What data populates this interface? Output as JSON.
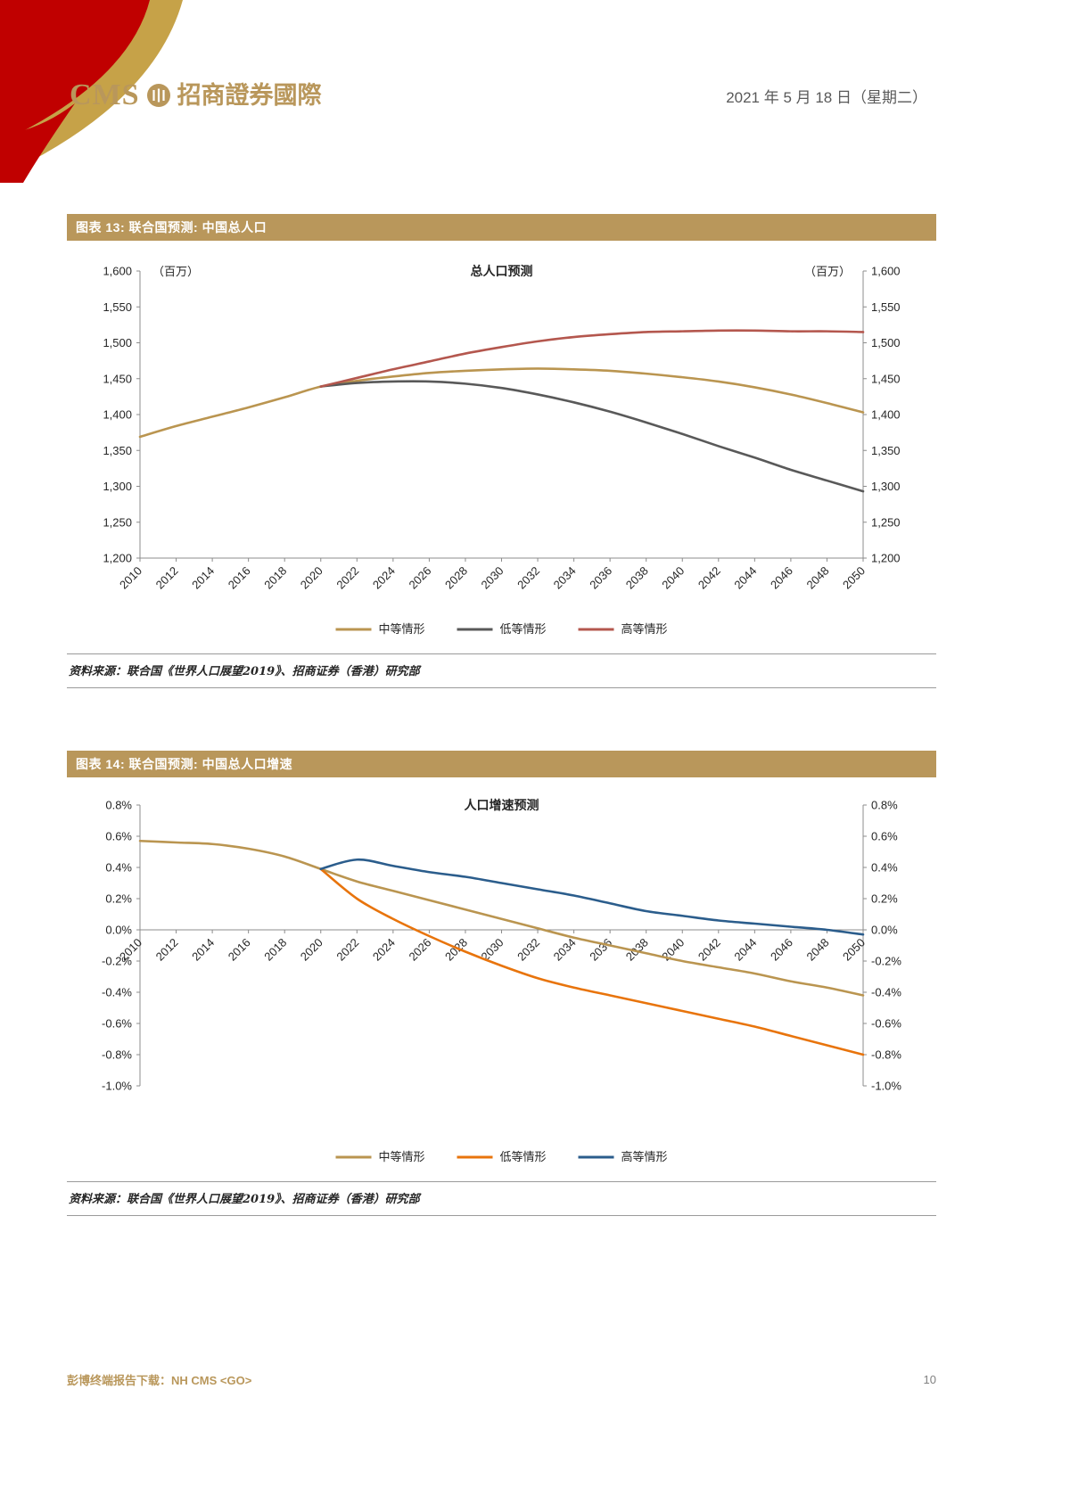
{
  "header": {
    "logo_cms": "CMS",
    "logo_cn": "招商證券國際",
    "date": "2021 年 5 月 18 日（星期二）"
  },
  "figure13": {
    "title": "图表 13:  联合国预测:  中国总人口",
    "source": "资料来源：联合国《世界人口展望2019》、招商证券（香港）研究部"
  },
  "figure14": {
    "title": "图表 14:  联合国预测:  中国总人口增速",
    "source": "资料来源：联合国《世界人口展望2019》、招商证券（香港）研究部"
  },
  "footer": {
    "left": "彭博终端报告下载：NH CMS <GO>",
    "page": "10"
  },
  "colors": {
    "accent_gold": "#B9975B",
    "decoration_red": "#C00000",
    "decoration_gold": "#C6A248"
  },
  "chart_data": [
    {
      "type": "line",
      "title": "总人口预测",
      "unit_left": "（百万）",
      "unit_right": "（百万）",
      "x": [
        "2010",
        "2012",
        "2014",
        "2016",
        "2018",
        "2020",
        "2022",
        "2024",
        "2026",
        "2028",
        "2030",
        "2032",
        "2034",
        "2036",
        "2038",
        "2040",
        "2042",
        "2044",
        "2046",
        "2048",
        "2050"
      ],
      "series": [
        {
          "name": "中等情形",
          "color": "#BA9550",
          "values": [
            1369,
            1384,
            1397,
            1410,
            1424,
            1439,
            1447,
            1453,
            1458,
            1461,
            1463,
            1464,
            1463,
            1461,
            1457,
            1452,
            1446,
            1438,
            1428,
            1416,
            1403
          ]
        },
        {
          "name": "低等情形",
          "color": "#595959",
          "values": [
            null,
            null,
            null,
            null,
            null,
            1439,
            1444,
            1446,
            1446,
            1443,
            1437,
            1428,
            1417,
            1404,
            1389,
            1373,
            1356,
            1340,
            1323,
            1308,
            1293
          ]
        },
        {
          "name": "高等情形",
          "color": "#B4574E",
          "values": [
            null,
            null,
            null,
            null,
            null,
            1439,
            1451,
            1463,
            1474,
            1485,
            1494,
            1502,
            1508,
            1512,
            1515,
            1516,
            1517,
            1517,
            1516,
            1516,
            1515
          ]
        }
      ],
      "ylim": [
        1200,
        1600
      ],
      "yticks": [
        1600,
        1550,
        1500,
        1450,
        1400,
        1350,
        1300,
        1250,
        1200
      ],
      "ytick_format": "comma",
      "x_axis_at": "bottom",
      "grid": false,
      "legend_position": "bottom"
    },
    {
      "type": "line",
      "title": "人口增速预测",
      "unit_left": "",
      "unit_right": "",
      "x": [
        "2010",
        "2012",
        "2014",
        "2016",
        "2018",
        "2020",
        "2022",
        "2024",
        "2026",
        "2028",
        "2030",
        "2032",
        "2034",
        "2036",
        "2038",
        "2040",
        "2042",
        "2044",
        "2046",
        "2048",
        "2050"
      ],
      "series": [
        {
          "name": "中等情形",
          "color": "#BA9550",
          "values": [
            0.57,
            0.56,
            0.55,
            0.52,
            0.47,
            0.39,
            0.31,
            0.25,
            0.19,
            0.13,
            0.07,
            0.01,
            -0.05,
            -0.1,
            -0.15,
            -0.2,
            -0.24,
            -0.28,
            -0.33,
            -0.37,
            -0.42
          ]
        },
        {
          "name": "低等情形",
          "color": "#E8740C",
          "values": [
            null,
            null,
            null,
            null,
            null,
            0.39,
            0.2,
            0.07,
            -0.04,
            -0.14,
            -0.23,
            -0.31,
            -0.37,
            -0.42,
            -0.47,
            -0.52,
            -0.57,
            -0.62,
            -0.68,
            -0.74,
            -0.8
          ]
        },
        {
          "name": "高等情形",
          "color": "#2B5D8C",
          "values": [
            null,
            null,
            null,
            null,
            null,
            0.39,
            0.45,
            0.41,
            0.37,
            0.34,
            0.3,
            0.26,
            0.22,
            0.17,
            0.12,
            0.09,
            0.06,
            0.04,
            0.02,
            0.0,
            -0.03
          ]
        }
      ],
      "ylim": [
        -1.0,
        0.8
      ],
      "yticks": [
        0.8,
        0.6,
        0.4,
        0.2,
        0.0,
        -0.2,
        -0.4,
        -0.6,
        -0.8,
        -1.0
      ],
      "ytick_format": "percent",
      "x_axis_at": "zero",
      "grid": false,
      "legend_position": "bottom"
    }
  ]
}
